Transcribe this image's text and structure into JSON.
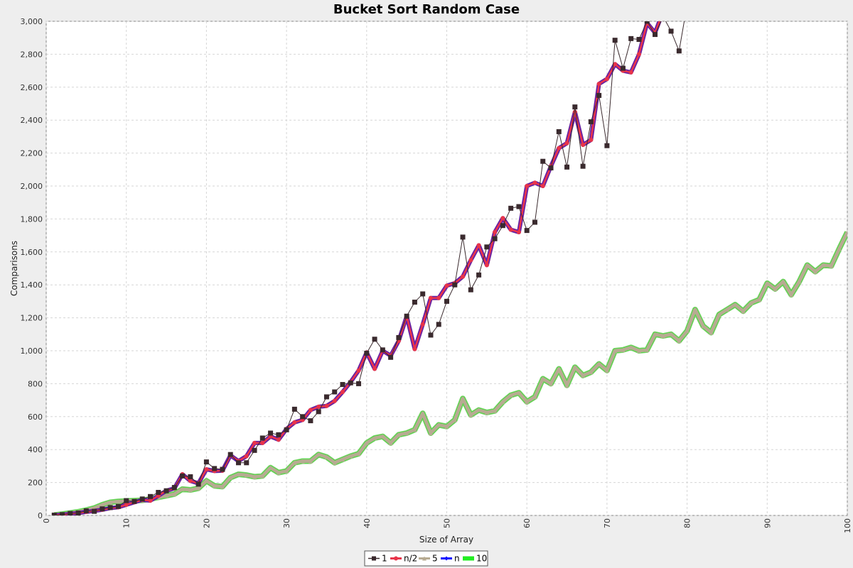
{
  "chart_data": {
    "type": "line",
    "title": "Bucket Sort Random Case",
    "xlabel": "Size of Array",
    "ylabel": "Comparisons",
    "xlim": [
      0,
      100
    ],
    "ylim": [
      0,
      3000
    ],
    "x_ticks": [
      "0",
      "10",
      "20",
      "30",
      "40",
      "50",
      "60",
      "70",
      "80",
      "90",
      "100"
    ],
    "y_ticks": [
      "0",
      "200",
      "400",
      "600",
      "800",
      "1,000",
      "1,200",
      "1,400",
      "1,600",
      "1,800",
      "2,000",
      "2,200",
      "2,400",
      "2,600",
      "2,800",
      "3,000"
    ],
    "grid": true,
    "legend_position": "bottom",
    "series": [
      {
        "name": "1",
        "color": "#3a2a2e",
        "marker": "square",
        "x": [
          1,
          2,
          3,
          4,
          5,
          6,
          7,
          8,
          9,
          10,
          11,
          12,
          13,
          14,
          15,
          16,
          17,
          18,
          19,
          20,
          21,
          22,
          23,
          24,
          25,
          26,
          27,
          28,
          29,
          30,
          31,
          32,
          33,
          34,
          35,
          36,
          37,
          38,
          39,
          40,
          41,
          42,
          43,
          44,
          45,
          46,
          47,
          48,
          49,
          50,
          51,
          52,
          53,
          54,
          55,
          56,
          57,
          58,
          59,
          60,
          61,
          62,
          63,
          64,
          65,
          66,
          67,
          68,
          69,
          70,
          71,
          72,
          73,
          74,
          75,
          76,
          77,
          78,
          79,
          80
        ],
        "values": [
          2,
          5,
          12,
          15,
          28,
          25,
          40,
          48,
          55,
          90,
          85,
          100,
          115,
          140,
          150,
          170,
          240,
          235,
          190,
          325,
          285,
          280,
          370,
          320,
          320,
          395,
          470,
          500,
          490,
          520,
          645,
          600,
          575,
          630,
          720,
          750,
          795,
          805,
          800,
          985,
          1070,
          1005,
          960,
          1080,
          1210,
          1295,
          1345,
          1095,
          1160,
          1300,
          1400,
          1690,
          1370,
          1460,
          1630,
          1680,
          1760,
          1865,
          1875,
          1730,
          1780,
          2150,
          2110,
          2330,
          2115,
          2480,
          2120,
          2390,
          2550,
          2245,
          2885,
          2715,
          2895,
          2890,
          3000,
          2920,
          3030,
          2940,
          2820,
          3100
        ]
      },
      {
        "name": "n/2",
        "color": "#e8344a",
        "marker": "circle",
        "x": [
          1,
          2,
          3,
          4,
          5,
          6,
          7,
          8,
          9,
          10,
          11,
          12,
          13,
          14,
          15,
          16,
          17,
          18,
          19,
          20,
          21,
          22,
          23,
          24,
          25,
          26,
          27,
          28,
          29,
          30,
          31,
          32,
          33,
          34,
          35,
          36,
          37,
          38,
          39,
          40,
          41,
          42,
          43,
          44,
          45,
          46,
          47,
          48,
          49,
          50,
          51,
          52,
          53,
          54,
          55,
          56,
          57,
          58,
          59,
          60,
          61,
          62,
          63,
          64,
          65,
          66,
          67,
          68,
          69,
          70,
          71,
          72,
          73,
          74,
          75,
          76,
          77
        ],
        "values": [
          2,
          5,
          10,
          15,
          22,
          28,
          35,
          45,
          50,
          65,
          80,
          95,
          90,
          120,
          150,
          165,
          250,
          210,
          195,
          280,
          270,
          272,
          365,
          330,
          360,
          440,
          440,
          480,
          460,
          525,
          565,
          580,
          640,
          660,
          665,
          695,
          750,
          810,
          880,
          990,
          890,
          1000,
          970,
          1060,
          1210,
          1010,
          1160,
          1320,
          1320,
          1395,
          1410,
          1450,
          1550,
          1640,
          1520,
          1720,
          1805,
          1735,
          1720,
          2000,
          2020,
          2000,
          2120,
          2230,
          2260,
          2450,
          2250,
          2280,
          2620,
          2650,
          2740,
          2700,
          2690,
          2800,
          2990,
          2930,
          3060
        ]
      },
      {
        "name": "5",
        "color": "#b7ab92",
        "marker": "triangle",
        "x": [
          1,
          2,
          3,
          4,
          5,
          6,
          7,
          8,
          9,
          10,
          11,
          12,
          13,
          14,
          15,
          16,
          17,
          18,
          19,
          20,
          21,
          22,
          23,
          24,
          25,
          26,
          27,
          28,
          29,
          30,
          31,
          32,
          33,
          34,
          35,
          36,
          37,
          38,
          39,
          40,
          41,
          42,
          43,
          44,
          45,
          46,
          47,
          48,
          49,
          50,
          51,
          52,
          53,
          54,
          55,
          56,
          57,
          58,
          59,
          60,
          61,
          62,
          63,
          64,
          65,
          66,
          67,
          68,
          69,
          70,
          71,
          72,
          73,
          74,
          75,
          76,
          77,
          78,
          79,
          80,
          81,
          82,
          83,
          84,
          85,
          86,
          87,
          88,
          89,
          90,
          91,
          92,
          93,
          94,
          95,
          96,
          97,
          98,
          99,
          100
        ],
        "values": [
          3,
          8,
          15,
          22,
          33,
          45,
          65,
          80,
          85,
          88,
          90,
          92,
          100,
          110,
          120,
          130,
          160,
          155,
          165,
          210,
          180,
          175,
          230,
          250,
          245,
          235,
          240,
          290,
          260,
          270,
          320,
          330,
          330,
          370,
          355,
          320,
          340,
          360,
          375,
          440,
          470,
          480,
          440,
          490,
          500,
          520,
          620,
          500,
          550,
          540,
          580,
          710,
          610,
          640,
          625,
          635,
          690,
          730,
          745,
          690,
          720,
          830,
          800,
          890,
          790,
          900,
          850,
          870,
          920,
          880,
          1000,
          1005,
          1020,
          1000,
          1005,
          1100,
          1090,
          1100,
          1060,
          1120,
          1250,
          1150,
          1110,
          1220,
          1250,
          1280,
          1240,
          1290,
          1310,
          1410,
          1375,
          1420,
          1340,
          1420,
          1520,
          1480,
          1520,
          1515,
          1620,
          1720
        ]
      },
      {
        "name": "n",
        "color": "#1010ff",
        "marker": "diamond",
        "x": [
          1,
          2,
          3,
          4,
          5,
          6,
          7,
          8,
          9,
          10,
          11,
          12,
          13,
          14,
          15,
          16,
          17,
          18,
          19,
          20,
          21,
          22,
          23,
          24,
          25,
          26,
          27,
          28,
          29,
          30,
          31,
          32,
          33,
          34,
          35,
          36,
          37,
          38,
          39,
          40,
          41,
          42,
          43,
          44,
          45,
          46,
          47,
          48,
          49,
          50,
          51,
          52,
          53,
          54,
          55,
          56,
          57,
          58,
          59,
          60,
          61,
          62,
          63,
          64,
          65,
          66,
          67,
          68,
          69,
          70,
          71,
          72,
          73,
          74,
          75,
          76,
          77
        ],
        "values": [
          2,
          5,
          10,
          15,
          22,
          28,
          35,
          45,
          50,
          65,
          80,
          95,
          90,
          120,
          150,
          165,
          250,
          210,
          195,
          280,
          270,
          272,
          365,
          330,
          360,
          440,
          440,
          480,
          460,
          525,
          565,
          580,
          640,
          660,
          665,
          695,
          750,
          810,
          880,
          990,
          890,
          1000,
          970,
          1060,
          1210,
          1010,
          1160,
          1320,
          1320,
          1395,
          1410,
          1450,
          1550,
          1640,
          1520,
          1720,
          1805,
          1735,
          1720,
          2000,
          2020,
          2000,
          2120,
          2230,
          2260,
          2450,
          2250,
          2280,
          2620,
          2650,
          2740,
          2700,
          2690,
          2800,
          2990,
          2930,
          3060
        ]
      },
      {
        "name": "10",
        "color": "#22ee22",
        "marker": "rect",
        "x": [
          1,
          2,
          3,
          4,
          5,
          6,
          7,
          8,
          9,
          10,
          11,
          12,
          13,
          14,
          15,
          16,
          17,
          18,
          19,
          20,
          21,
          22,
          23,
          24,
          25,
          26,
          27,
          28,
          29,
          30,
          31,
          32,
          33,
          34,
          35,
          36,
          37,
          38,
          39,
          40,
          41,
          42,
          43,
          44,
          45,
          46,
          47,
          48,
          49,
          50,
          51,
          52,
          53,
          54,
          55,
          56,
          57,
          58,
          59,
          60,
          61,
          62,
          63,
          64,
          65,
          66,
          67,
          68,
          69,
          70,
          71,
          72,
          73,
          74,
          75,
          76,
          77,
          78,
          79,
          80,
          81,
          82,
          83,
          84,
          85,
          86,
          87,
          88,
          89,
          90,
          91,
          92,
          93,
          94,
          95,
          96,
          97,
          98,
          99,
          100
        ],
        "values": [
          3,
          8,
          15,
          22,
          33,
          45,
          65,
          80,
          85,
          88,
          90,
          92,
          100,
          110,
          120,
          130,
          160,
          155,
          165,
          210,
          180,
          175,
          230,
          250,
          245,
          235,
          240,
          290,
          260,
          270,
          320,
          330,
          330,
          370,
          355,
          320,
          340,
          360,
          375,
          440,
          470,
          480,
          440,
          490,
          500,
          520,
          620,
          500,
          550,
          540,
          580,
          710,
          610,
          640,
          625,
          635,
          690,
          730,
          745,
          690,
          720,
          830,
          800,
          890,
          790,
          900,
          850,
          870,
          920,
          880,
          1000,
          1005,
          1020,
          1000,
          1005,
          1100,
          1090,
          1100,
          1060,
          1120,
          1250,
          1150,
          1110,
          1220,
          1250,
          1280,
          1240,
          1290,
          1310,
          1410,
          1375,
          1420,
          1340,
          1420,
          1520,
          1480,
          1520,
          1515,
          1620,
          1720
        ]
      }
    ]
  }
}
